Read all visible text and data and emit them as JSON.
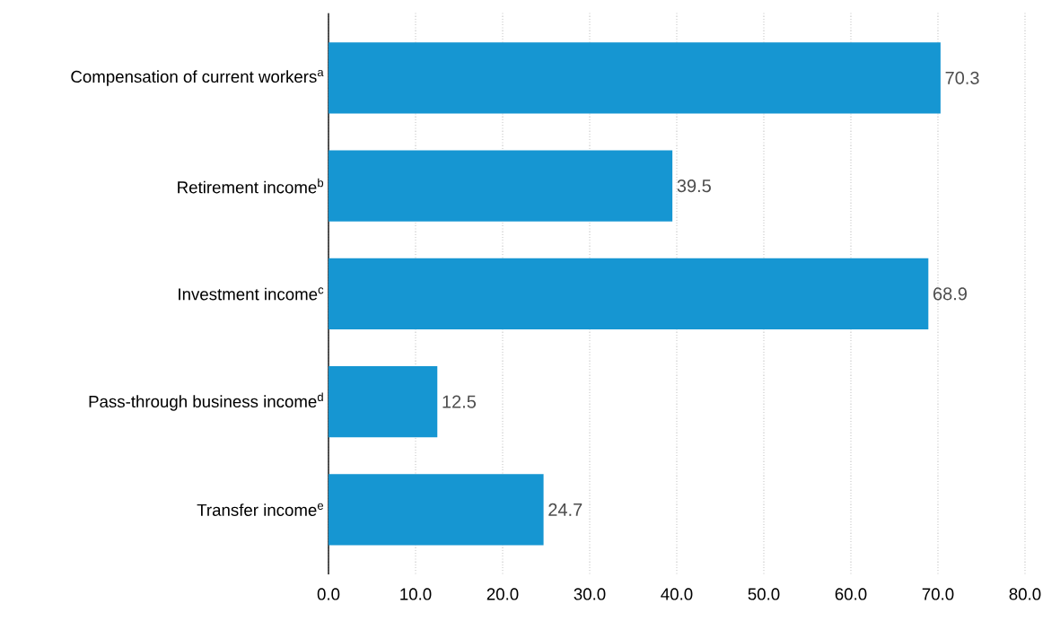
{
  "chart_data": {
    "type": "bar",
    "orientation": "horizontal",
    "categories": [
      "Compensation of current workers$^{a}$",
      "Retirement income$^{b}$",
      "Investment income$^{c}$",
      "Pass-through business income$^{d}$",
      "Transfer income$^{e}$"
    ],
    "values": [
      70.3,
      39.5,
      68.9,
      12.5,
      24.7
    ],
    "color": "#1696d2",
    "xlim": [
      0,
      80
    ],
    "xticks": [
      {
        "value": 0,
        "label": "0.0"
      },
      {
        "value": 10,
        "label": "10.0"
      },
      {
        "value": 20,
        "label": "20.0"
      },
      {
        "value": 30,
        "label": "30.0"
      },
      {
        "value": 40,
        "label": "40.0"
      },
      {
        "value": 50,
        "label": "50.0"
      },
      {
        "value": 60,
        "label": "60.0"
      },
      {
        "value": 70,
        "label": "70.0"
      },
      {
        "value": 80,
        "label": "80.0"
      }
    ],
    "grid": "x",
    "data_labels": true
  }
}
